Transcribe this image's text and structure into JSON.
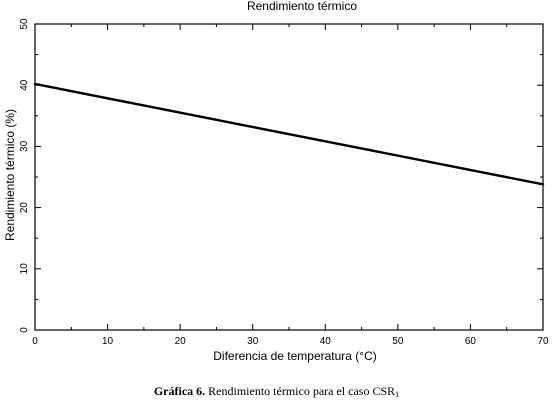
{
  "chart_data": {
    "type": "line",
    "title": "Rendimiento térmico",
    "xlabel": "Diferencia de temperatura (°C)",
    "ylabel": "Rendimiento térmico (%)",
    "xlim": [
      0,
      70
    ],
    "ylim": [
      0,
      50
    ],
    "x_ticks": [
      "0",
      "10",
      "20",
      "30",
      "40",
      "50",
      "60",
      "70"
    ],
    "y_ticks": [
      "0",
      "10",
      "20",
      "30",
      "40",
      "50"
    ],
    "grid": false,
    "series": [
      {
        "x": [
          0,
          70
        ],
        "y": [
          40.2,
          23.8
        ],
        "color": "#000000"
      }
    ]
  },
  "caption": {
    "label": "Gráfica 6.",
    "text": "Rendimiento térmico para el caso CSR",
    "subscript": "1"
  }
}
